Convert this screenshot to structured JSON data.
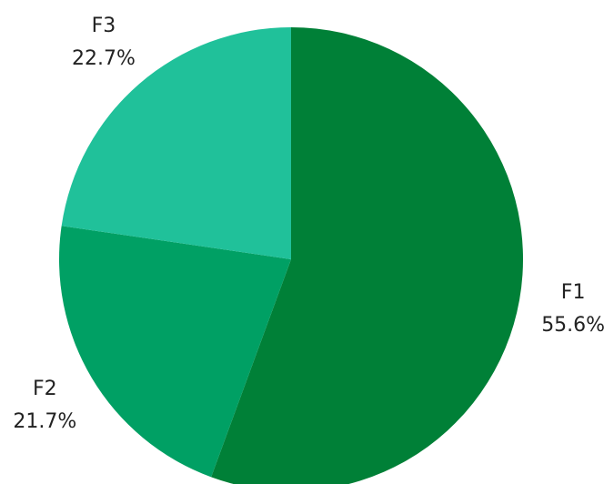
{
  "chart_data": {
    "type": "pie",
    "categories": [
      "F1",
      "F2",
      "F3"
    ],
    "values": [
      55.6,
      21.7,
      22.7
    ],
    "value_labels": [
      "55.6%",
      "21.7%",
      "22.7%"
    ],
    "colors": [
      "#008037",
      "#00a064",
      "#20c19a"
    ]
  }
}
